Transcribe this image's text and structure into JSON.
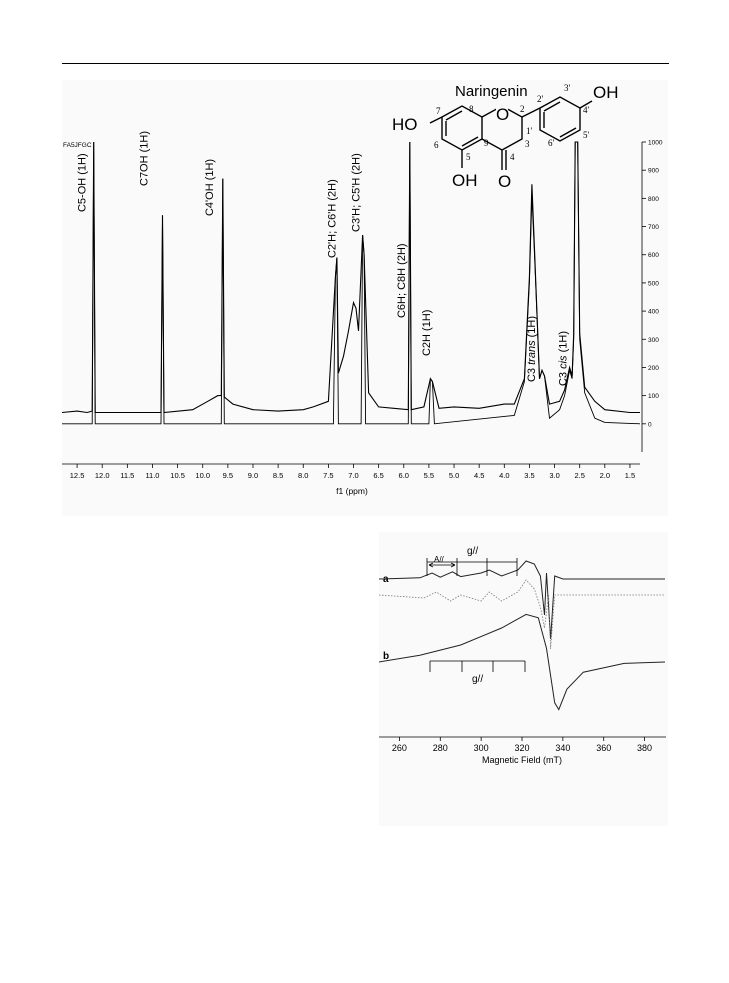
{
  "figure_nmr": {
    "chart_data": {
      "type": "line",
      "xlabel": "f1 (ppm)",
      "x_ticks": [
        "12.5",
        "12.0",
        "11.5",
        "11.0",
        "10.5",
        "10.0",
        "9.5",
        "9.0",
        "8.5",
        "8.0",
        "7.5",
        "7.0",
        "6.5",
        "6.0",
        "5.5",
        "5.0",
        "4.5",
        "4.0",
        "3.5",
        "3.0",
        "2.5",
        "2.0",
        "1.5"
      ],
      "x_tick_values": [
        12.5,
        12.0,
        11.5,
        11.0,
        10.5,
        10.0,
        9.5,
        9.0,
        8.5,
        8.0,
        7.5,
        7.0,
        6.5,
        6.0,
        5.5,
        5.0,
        4.5,
        4.0,
        3.5,
        3.0,
        2.5,
        2.0,
        1.5
      ],
      "xlim": [
        12.8,
        1.3
      ],
      "ylim": [
        -100,
        1000
      ],
      "y_ticks": [
        "1000",
        "900",
        "800",
        "700",
        "600",
        "500",
        "400",
        "300",
        "200",
        "100",
        "0"
      ],
      "y_tick_values": [
        1000,
        900,
        800,
        700,
        600,
        500,
        400,
        300,
        200,
        100,
        0
      ],
      "y_axis_side": "right",
      "corner_label": "FA5JFGC",
      "peaks": [
        {
          "label": "C5-OH (1H)",
          "ppm": 12.15,
          "height": 1000
        },
        {
          "label": "C7OH (1H)",
          "ppm": 10.8,
          "height": 740
        },
        {
          "label": "C4'OH (1H)",
          "ppm": 9.6,
          "height": 870
        },
        {
          "label": "C2'H; C6'H (2H)",
          "ppm": 7.32,
          "height": 590
        },
        {
          "label": "C3'H; C5'H (2H)",
          "ppm": 6.8,
          "height": 670
        },
        {
          "label": "C6H; C8H (2H)",
          "ppm": 5.88,
          "height": 1000
        },
        {
          "label": "C2H (1H)",
          "ppm": 5.44,
          "height": 160
        },
        {
          "label": "C3 trans (1H)",
          "ppm": 3.25,
          "height": 190
        },
        {
          "label": "C3 cis (1H)",
          "ppm": 2.68,
          "height": 190
        }
      ],
      "series": [
        {
          "points": [
            [
              12.8,
              0
            ],
            [
              12.2,
              0
            ],
            [
              12.17,
              1000
            ],
            [
              12.14,
              0
            ],
            [
              10.83,
              0
            ],
            [
              10.8,
              740
            ],
            [
              10.77,
              0
            ],
            [
              9.63,
              0
            ],
            [
              9.6,
              870
            ],
            [
              9.57,
              0
            ],
            [
              7.4,
              0
            ],
            [
              7.36,
              520
            ],
            [
              7.33,
              590
            ],
            [
              7.3,
              0
            ],
            [
              6.85,
              0
            ],
            [
              6.82,
              670
            ],
            [
              6.79,
              600
            ],
            [
              6.76,
              0
            ],
            [
              5.91,
              0
            ],
            [
              5.88,
              1000
            ],
            [
              5.85,
              0
            ],
            [
              5.5,
              0
            ],
            [
              5.47,
              160
            ],
            [
              5.43,
              150
            ],
            [
              5.39,
              0
            ],
            [
              3.8,
              30
            ],
            [
              3.6,
              150
            ],
            [
              3.5,
              500
            ],
            [
              3.45,
              810
            ],
            [
              3.4,
              600
            ],
            [
              3.3,
              160
            ],
            [
              3.25,
              190
            ],
            [
              3.2,
              170
            ],
            [
              3.1,
              20
            ],
            [
              2.9,
              50
            ],
            [
              2.8,
              100
            ],
            [
              2.7,
              190
            ],
            [
              2.65,
              160
            ],
            [
              2.62,
              300
            ],
            [
              2.59,
              1000
            ],
            [
              2.54,
              1000
            ],
            [
              2.5,
              300
            ],
            [
              2.4,
              110
            ],
            [
              2.2,
              20
            ],
            [
              2.0,
              5
            ],
            [
              1.3,
              0
            ]
          ]
        },
        {
          "points": [
            [
              12.8,
              40
            ],
            [
              12.5,
              45
            ],
            [
              12.3,
              40
            ],
            [
              12.2,
              45
            ],
            [
              12.17,
              1000
            ],
            [
              12.14,
              40
            ],
            [
              11.5,
              40
            ],
            [
              10.83,
              40
            ],
            [
              10.8,
              740
            ],
            [
              10.77,
              40
            ],
            [
              10.2,
              50
            ],
            [
              9.9,
              80
            ],
            [
              9.7,
              100
            ],
            [
              9.63,
              100
            ],
            [
              9.6,
              870
            ],
            [
              9.57,
              95
            ],
            [
              9.4,
              70
            ],
            [
              9.0,
              50
            ],
            [
              8.5,
              45
            ],
            [
              8.0,
              50
            ],
            [
              7.8,
              60
            ],
            [
              7.5,
              80
            ],
            [
              7.36,
              520
            ],
            [
              7.33,
              590
            ],
            [
              7.3,
              180
            ],
            [
              7.2,
              240
            ],
            [
              7.1,
              330
            ],
            [
              7.0,
              430
            ],
            [
              6.95,
              410
            ],
            [
              6.9,
              330
            ],
            [
              6.82,
              670
            ],
            [
              6.79,
              600
            ],
            [
              6.7,
              110
            ],
            [
              6.5,
              60
            ],
            [
              6.2,
              55
            ],
            [
              5.91,
              50
            ],
            [
              5.88,
              1000
            ],
            [
              5.85,
              50
            ],
            [
              5.6,
              60
            ],
            [
              5.47,
              160
            ],
            [
              5.43,
              150
            ],
            [
              5.3,
              55
            ],
            [
              5.0,
              60
            ],
            [
              4.5,
              55
            ],
            [
              4.0,
              70
            ],
            [
              3.8,
              70
            ],
            [
              3.6,
              160
            ],
            [
              3.5,
              520
            ],
            [
              3.45,
              850
            ],
            [
              3.4,
              620
            ],
            [
              3.3,
              160
            ],
            [
              3.25,
              190
            ],
            [
              3.2,
              170
            ],
            [
              3.1,
              70
            ],
            [
              2.9,
              80
            ],
            [
              2.8,
              120
            ],
            [
              2.7,
              200
            ],
            [
              2.65,
              170
            ],
            [
              2.62,
              320
            ],
            [
              2.59,
              1000
            ],
            [
              2.54,
              1000
            ],
            [
              2.5,
              320
            ],
            [
              2.4,
              130
            ],
            [
              2.2,
              80
            ],
            [
              2.0,
              50
            ],
            [
              1.5,
              40
            ],
            [
              1.3,
              40
            ]
          ]
        }
      ]
    },
    "molecule": {
      "title": "Naringenin",
      "groups": {
        "ho": "HO",
        "oh_bottom": "OH",
        "oh_right": "OH",
        "o_ring": "O",
        "o_carbonyl": "O"
      },
      "atom_numbers": {
        "n2": "2",
        "n3": "3",
        "n4": "4",
        "n5": "5",
        "n6": "6",
        "n7": "7",
        "n8": "8",
        "n9": "9",
        "n1p": "1'",
        "n2p": "2'",
        "n3p": "3'",
        "n4p": "4'",
        "n5p": "5'",
        "n6p": "6'"
      }
    }
  },
  "figure_epr": {
    "chart_data": {
      "type": "line",
      "xlabel": "Magnetic Field (mT)",
      "x_ticks": [
        "260",
        "280",
        "300",
        "320",
        "340",
        "360",
        "380"
      ],
      "x_tick_values": [
        260,
        280,
        300,
        320,
        340,
        360,
        380
      ],
      "xlim": [
        250,
        390
      ],
      "trace_labels": {
        "a": "a",
        "b": "b"
      },
      "annotations": {
        "g_par_top": "g//",
        "a_par": "A//",
        "g_par_bottom": "g//"
      },
      "series": [
        {
          "label": "a",
          "style": "solid",
          "points": [
            [
              250,
              0
            ],
            [
              270,
              0.02
            ],
            [
              276,
              0.1
            ],
            [
              280,
              0.03
            ],
            [
              286,
              0.12
            ],
            [
              290,
              0.04
            ],
            [
              300,
              0.1
            ],
            [
              304,
              0.15
            ],
            [
              310,
              0.05
            ],
            [
              318,
              0.15
            ],
            [
              322,
              0.3
            ],
            [
              326,
              0.25
            ],
            [
              329,
              0.05
            ],
            [
              331,
              -0.6
            ],
            [
              332,
              0.1
            ],
            [
              334,
              -1.0
            ],
            [
              336,
              0.05
            ],
            [
              340,
              0.0
            ],
            [
              390,
              0.0
            ]
          ]
        },
        {
          "label": "a",
          "style": "dotted",
          "points": [
            [
              250,
              0
            ],
            [
              272,
              -0.05
            ],
            [
              278,
              0.05
            ],
            [
              285,
              -0.1
            ],
            [
              290,
              0.0
            ],
            [
              300,
              -0.1
            ],
            [
              304,
              0.05
            ],
            [
              310,
              -0.1
            ],
            [
              318,
              0.05
            ],
            [
              322,
              0.25
            ],
            [
              326,
              0.1
            ],
            [
              329,
              -0.2
            ],
            [
              331,
              -0.55
            ],
            [
              333,
              0.0
            ],
            [
              334,
              -0.9
            ],
            [
              336,
              0.0
            ],
            [
              390,
              0.0
            ]
          ]
        },
        {
          "label": "b",
          "style": "solid",
          "points": [
            [
              250,
              0
            ],
            [
              270,
              0.1
            ],
            [
              290,
              0.25
            ],
            [
              310,
              0.5
            ],
            [
              322,
              0.7
            ],
            [
              328,
              0.65
            ],
            [
              332,
              0.2
            ],
            [
              336,
              -0.6
            ],
            [
              338,
              -0.7
            ],
            [
              342,
              -0.4
            ],
            [
              350,
              -0.15
            ],
            [
              370,
              -0.02
            ],
            [
              390,
              0
            ]
          ]
        }
      ]
    }
  }
}
